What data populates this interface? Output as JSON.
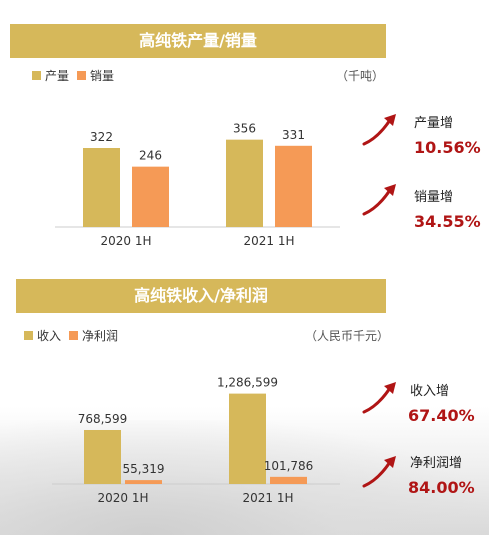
{
  "section1": {
    "title": "高纯铁产量/销量",
    "legend": [
      "产量",
      "销量"
    ],
    "unit": "（千吨）",
    "stats": [
      {
        "label": "产量增",
        "value": "10.56%"
      },
      {
        "label": "销量增",
        "value": "34.55%"
      }
    ]
  },
  "section2": {
    "title": "高纯铁收入/净利润",
    "legend": [
      "收入",
      "净利润"
    ],
    "unit": "（人民币千元）",
    "stats": [
      {
        "label": "收入增",
        "value": "67.40%"
      },
      {
        "label": "净利润增",
        "value": "84.00%"
      }
    ]
  },
  "colors": {
    "primary": "#d6b85a",
    "secondary": "#f59a56",
    "accent": "#b01515"
  },
  "chart_data": [
    {
      "type": "bar",
      "title": "高纯铁产量/销量",
      "categories": [
        "2020 1H",
        "2021 1H"
      ],
      "series": [
        {
          "name": "产量",
          "values": [
            322,
            356
          ],
          "labels": [
            "322",
            "356"
          ]
        },
        {
          "name": "销量",
          "values": [
            246,
            331
          ],
          "labels": [
            "246",
            "331"
          ]
        }
      ],
      "ylim": [
        0,
        400
      ],
      "unit": "（千吨）",
      "legend": "top-left"
    },
    {
      "type": "bar",
      "title": "高纯铁收入/净利润",
      "categories": [
        "2020 1H",
        "2021 1H"
      ],
      "series": [
        {
          "name": "收入",
          "values": [
            768599,
            1286599
          ],
          "labels": [
            "768,599",
            "1,286,599"
          ]
        },
        {
          "name": "净利润",
          "values": [
            55319,
            101786
          ],
          "labels": [
            "55,319",
            "101,786"
          ]
        }
      ],
      "ylim": [
        0,
        1400000
      ],
      "unit": "（人民币千元）",
      "legend": "top-left"
    }
  ]
}
